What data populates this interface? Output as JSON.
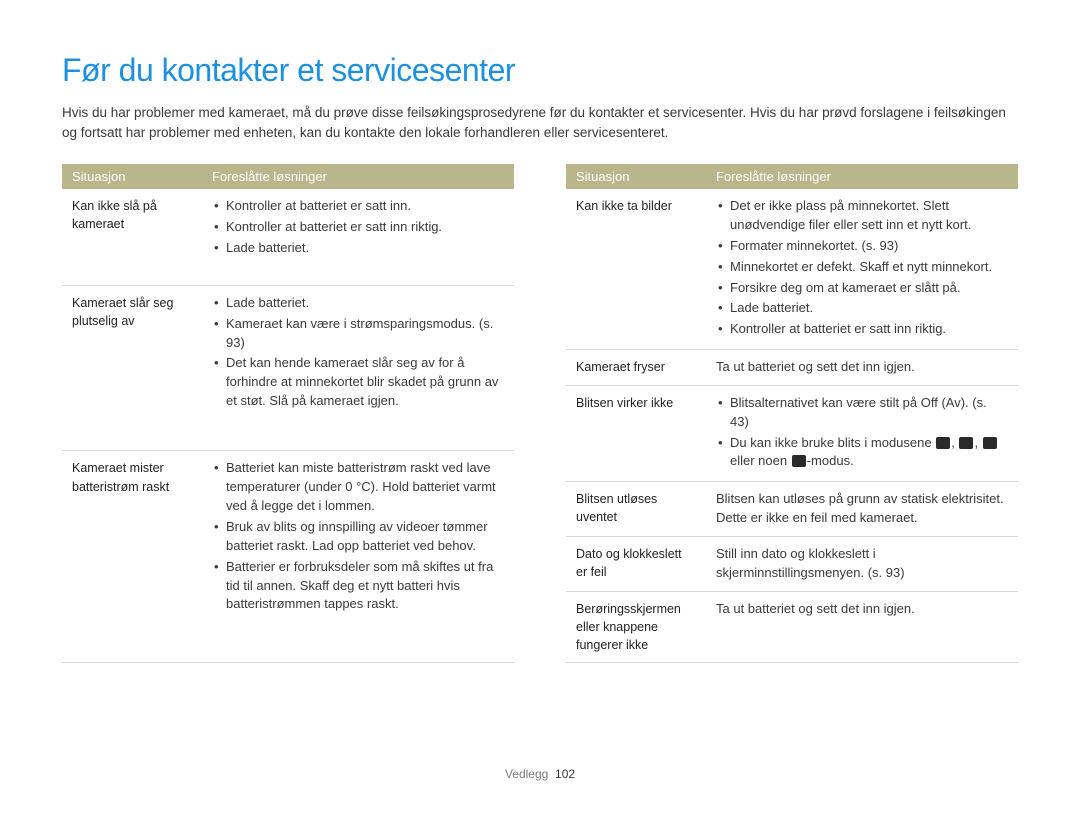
{
  "title": "Før du kontakter et servicesenter",
  "intro": "Hvis du har problemer med kameraet, må du prøve disse feilsøkingsprosedyrene før du kontakter et servicesenter. Hvis du har prøvd forslagene i feilsøkingen og fortsatt har problemer med enheten, kan du kontakte den lokale forhandleren eller servicesenteret.",
  "headers": {
    "situation": "Situasjon",
    "solutions": "Foreslåtte løsninger"
  },
  "left": [
    {
      "situation": "Kan ikke slå på kameraet",
      "bullets": [
        "Kontroller at batteriet er satt inn.",
        "Kontroller at batteriet er satt inn riktig.",
        "Lade batteriet."
      ]
    },
    {
      "situation": "Kameraet slår seg plutselig av",
      "bullets": [
        "Lade batteriet.",
        "Kameraet kan være i strømsparingsmodus. (s. 93)",
        "Det kan hende kameraet slår seg av for å forhindre at minnekortet blir skadet på grunn av et støt. Slå på kameraet igjen."
      ]
    },
    {
      "situation": "Kameraet mister batteristrøm raskt",
      "bullets": [
        "Batteriet kan miste batteristrøm raskt ved lave temperaturer (under 0 °C). Hold batteriet varmt ved å legge det i lommen.",
        "Bruk av blits og innspilling av videoer tømmer batteriet raskt. Lad opp batteriet ved behov.",
        "Batterier er forbruksdeler som må skiftes ut fra tid til annen. Skaff deg et nytt batteri hvis batteristrømmen tappes raskt."
      ]
    }
  ],
  "right": [
    {
      "situation": "Kan ikke ta bilder",
      "bullets": [
        "Det er ikke plass på minnekortet. Slett unødvendige filer eller sett inn et nytt kort.",
        "Formater minnekortet. (s. 93)",
        "Minnekortet er defekt. Skaff et nytt minnekort.",
        "Forsikre deg om at kameraet er slått på.",
        "Lade batteriet.",
        "Kontroller at batteriet er satt inn riktig."
      ]
    },
    {
      "situation": "Kameraet fryser",
      "text": "Ta ut batteriet og sett det inn igjen."
    },
    {
      "situation": "Blitsen virker ikke",
      "bullets_special": {
        "line1": "Blitsalternativet kan være stilt på Off (Av). (s. 43)",
        "line2_prefix": "Du kan ikke bruke blits i modusene ",
        "line2_mid": ", ",
        "line2_mid2": ", ",
        "line2_mid3": " eller noen ",
        "line2_suffix": "-modus."
      }
    },
    {
      "situation": "Blitsen utløses uventet",
      "text": "Blitsen kan utløses på grunn av statisk elektrisitet. Dette er ikke en feil med kameraet."
    },
    {
      "situation": "Dato og klokkeslett er feil",
      "text": "Still inn dato og klokkeslett i skjerminnstillingsmenyen. (s. 93)"
    },
    {
      "situation": "Berøringsskjermen eller knappene fungerer ikke",
      "text": "Ta ut batteriet og sett det inn igjen."
    }
  ],
  "footer": {
    "section": "Vedlegg",
    "page": "102"
  },
  "colors": {
    "title": "#1e90e0",
    "header_bg": "#b8b68a",
    "header_fg": "#ffffff",
    "border": "#d9d9d9",
    "text": "#3a3a3a"
  }
}
